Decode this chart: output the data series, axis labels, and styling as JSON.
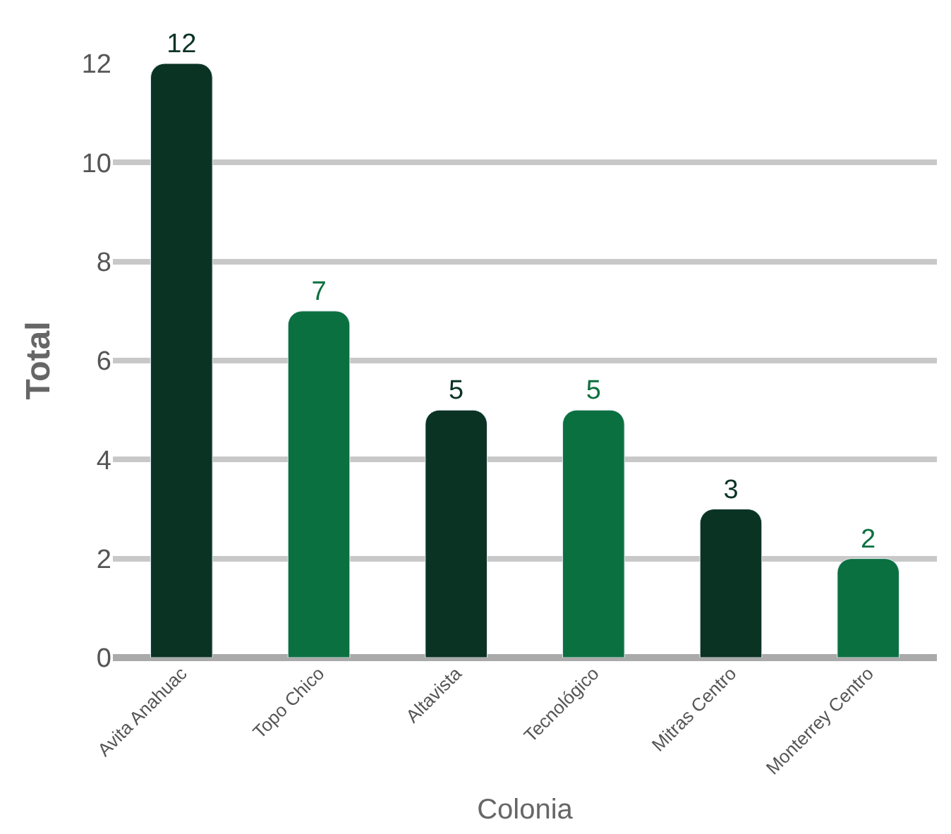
{
  "chart_data": {
    "type": "bar",
    "xlabel": "Colonia",
    "ylabel": "Total",
    "categories": [
      "Avita Anahuac",
      "Topo Chico",
      "Altavista",
      "Tecnológico",
      "Mitras Centro",
      "Monterrey Centro"
    ],
    "values": [
      12,
      7,
      5,
      5,
      3,
      2
    ],
    "colors": [
      "#0b3324",
      "#0b7040",
      "#0b3324",
      "#0b7040",
      "#0b3324",
      "#0b7040"
    ],
    "ylim": [
      0,
      12
    ],
    "yticks": [
      0,
      2,
      4,
      6,
      8,
      10,
      12
    ],
    "grid": "y",
    "data_labels": true,
    "legend": false
  }
}
